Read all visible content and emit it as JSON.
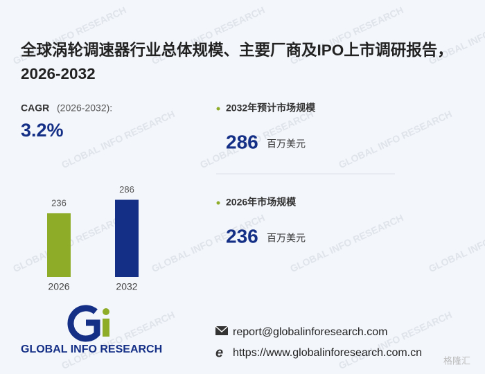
{
  "title": "全球涡轮调速器行业总体规模、主要厂商及IPO上市调研报告，2026-2032",
  "cagr": {
    "label": "CAGR",
    "period": "(2026-2032):",
    "value": "3.2%"
  },
  "chart_data": {
    "type": "bar",
    "categories": [
      "2026",
      "2032"
    ],
    "values": [
      236,
      286
    ],
    "colors": [
      "#8eac27",
      "#142f86"
    ]
  },
  "stats": [
    {
      "label": "2032年预计市场规模",
      "value": 286,
      "unit": "百万美元"
    },
    {
      "label": "2026年市场规模",
      "value": 236,
      "unit": "百万美元"
    }
  ],
  "brand": "GLOBAL INFO RESEARCH",
  "contact": {
    "email": "report@globalinforesearch.com",
    "website": "https://www.globalinforesearch.com.cn"
  },
  "corner_mark": "格隆汇"
}
